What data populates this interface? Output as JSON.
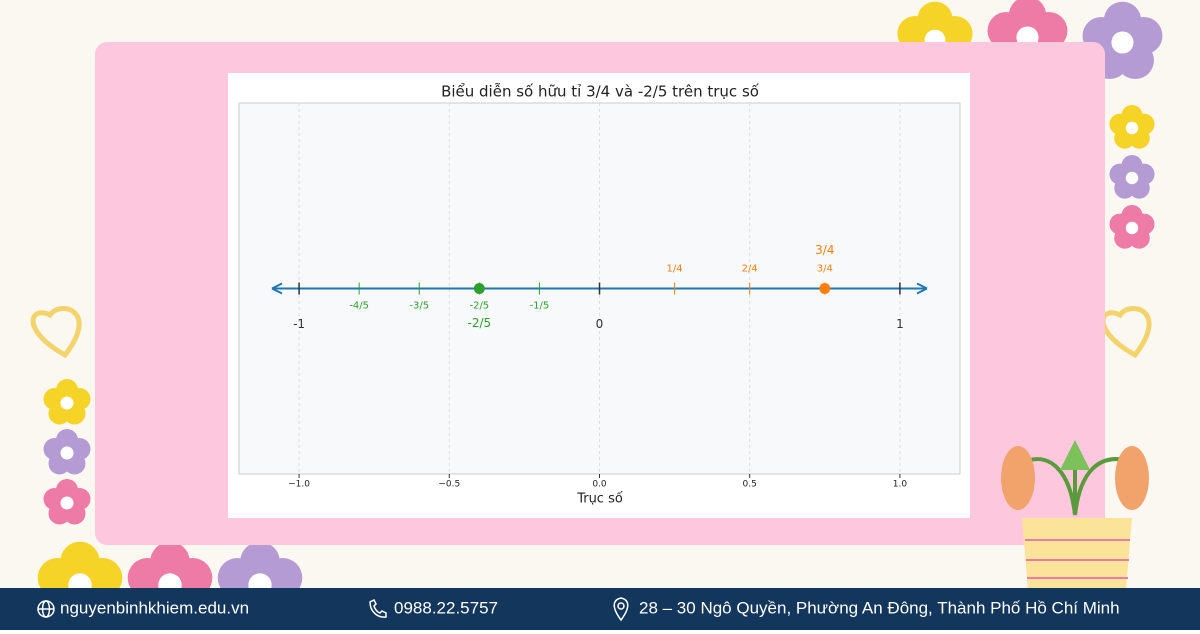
{
  "chart_data": {
    "type": "number-line",
    "title": "Biểu diễn số hữu tỉ 3/4 và -2/5 trên trục số",
    "xlabel": "Trục số",
    "xlim": [
      -1.2,
      1.2
    ],
    "ylim": [
      -1,
      1
    ],
    "xticks": [
      {
        "value": -1.0,
        "label": "−1.0"
      },
      {
        "value": -0.5,
        "label": "−0.5"
      },
      {
        "value": 0.0,
        "label": "0.0"
      },
      {
        "value": 0.5,
        "label": "0.5"
      },
      {
        "value": 1.0,
        "label": "1.0"
      }
    ],
    "grid": true,
    "line_color": "#1f77b4",
    "tick_groups": [
      {
        "color": "#333333",
        "label_position": "below",
        "values": [
          -1,
          0,
          1
        ],
        "labels": [
          "-1",
          "0",
          "1"
        ]
      },
      {
        "color": "#2ca02c",
        "label_position": "below",
        "values": [
          -0.8,
          -0.6,
          -0.4,
          -0.2
        ],
        "labels": [
          "-4/5",
          "-3/5",
          "-2/5",
          "-1/5"
        ]
      },
      {
        "color": "#ff7f0e",
        "label_position": "above",
        "values": [
          0.25,
          0.5,
          0.75
        ],
        "labels": [
          "1/4",
          "2/4",
          "3/4"
        ]
      }
    ],
    "points": [
      {
        "value": -0.4,
        "label": "-2/5",
        "color": "#2ca02c",
        "label_position": "below"
      },
      {
        "value": 0.75,
        "label": "3/4",
        "color": "#ff7f0e",
        "label_position": "above"
      }
    ]
  },
  "footer": {
    "website": "nguyenbinhkhiem.edu.vn",
    "phone": "0988.22.5757",
    "address": "28 – 30 Ngô Quyền, Phường An Đông, Thành Phố Hồ Chí Minh"
  }
}
